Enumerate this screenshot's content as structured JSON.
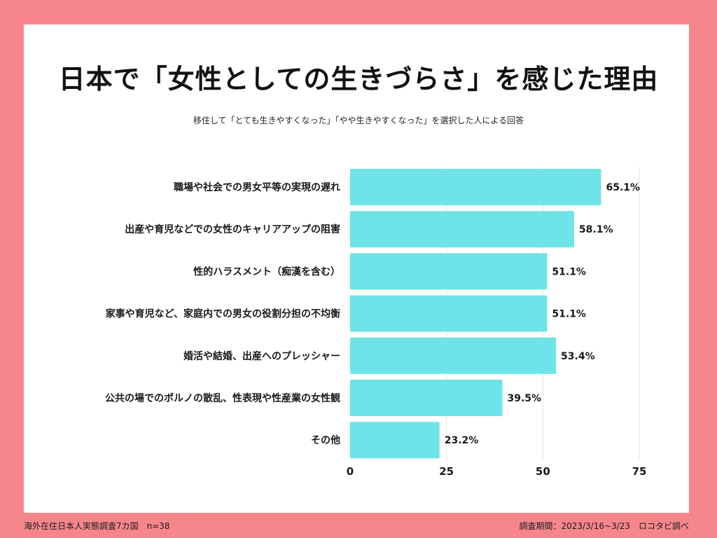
{
  "footer": {
    "left": "海外在住日本人実態調査7カ国　n=38",
    "right": "調査期間：2023/3/16~3/23　ロコタビ調べ"
  },
  "colors": {
    "background": "#f7868c",
    "card": "#ffffff",
    "bar": "#6ee4e8",
    "grid": "#e3e3e3"
  },
  "chart_data": {
    "type": "bar",
    "orientation": "horizontal",
    "title": "日本で「女性としての生きづらさ」を感じた理由",
    "subtitle": "移住して「とても生きやすくなった」「やや生きやすくなった」を選択した人による回答",
    "categories": [
      "職場や社会での男女平等の実現の遅れ",
      "出産や育児などでの女性のキャリアアップの阻害",
      "性的ハラスメント（痴漢を含む）",
      "家事や育児など、家庭内での男女の役割分担の不均衡",
      "婚活や結婚、出産へのプレッシャー",
      "公共の場でのポルノの散乱、性表現や性産業の女性観",
      "その他"
    ],
    "values": [
      65.1,
      58.1,
      51.1,
      51.1,
      53.4,
      39.5,
      23.2
    ],
    "value_labels": [
      "65.1%",
      "58.1%",
      "51.1%",
      "51.1%",
      "53.4%",
      "39.5%",
      "23.2%"
    ],
    "xticks": [
      0,
      25,
      50,
      75
    ],
    "xlim": [
      0,
      75
    ],
    "grid": "vertical",
    "legend": "none"
  }
}
